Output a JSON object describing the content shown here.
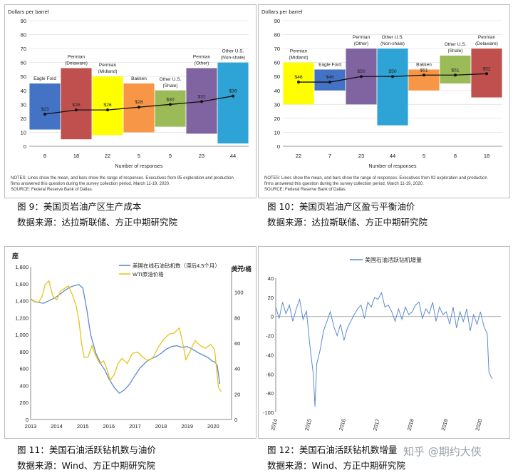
{
  "chart_data": [
    {
      "type": "bar",
      "ylabel": "Dollars per barrel",
      "xlabel": "Number of responses",
      "ylim": [
        0,
        90
      ],
      "yticks": [
        0,
        10,
        20,
        30,
        40,
        50,
        60,
        70,
        80,
        90
      ],
      "categories": [
        "Eagle Ford",
        "Permian (Delaware)",
        "Permian (Midland)",
        "Bakken",
        "Other U.S. (Shale)",
        "Permian (Other)",
        "Other U.S. (Non-shale)"
      ],
      "responses": [
        "8",
        "18",
        "22",
        "5",
        "9",
        "23",
        "44"
      ],
      "series": [
        {
          "name": "mean",
          "values": [
            23,
            26,
            26,
            28,
            30,
            32,
            36
          ]
        },
        {
          "name": "low",
          "values": [
            12,
            5,
            8,
            10,
            14,
            9,
            2
          ]
        },
        {
          "name": "high",
          "values": [
            45,
            56,
            50,
            45,
            40,
            56,
            60
          ]
        }
      ],
      "value_labels": [
        "$23",
        "$26",
        "$26",
        "$28",
        "$30",
        "$32",
        "$36"
      ],
      "colors": [
        "#4472c4",
        "#c0504d",
        "#ffff00",
        "#f79646",
        "#9bbb59",
        "#8064a2",
        "#2ea3d5"
      ],
      "notes": "NOTES: Lines show the mean, and bars show the range of responses. Executives from 95 exploration and production firms answered this question during the survey collection period, March 11-19, 2020.",
      "source": "SOURCE: Federal Reserve Bank of Dallas."
    },
    {
      "type": "bar",
      "ylabel": "Dollars per barrel",
      "xlabel": "Number of responses",
      "ylim": [
        0,
        90
      ],
      "yticks": [
        0,
        10,
        20,
        30,
        40,
        50,
        60,
        70,
        80,
        90
      ],
      "categories": [
        "Permian (Midland)",
        "Eagle Ford",
        "Permian (Other)",
        "Other U.S. (Non-shale)",
        "Bakken",
        "Other U.S. (Shale)",
        "Permian (Delaware)"
      ],
      "responses": [
        "22",
        "7",
        "23",
        "44",
        "5",
        "8",
        "18"
      ],
      "series": [
        {
          "name": "mean",
          "values": [
            46,
            46,
            50,
            50,
            51,
            51,
            52
          ]
        },
        {
          "name": "low",
          "values": [
            30,
            40,
            30,
            15,
            40,
            45,
            35
          ]
        },
        {
          "name": "high",
          "values": [
            60,
            55,
            70,
            70,
            55,
            65,
            70
          ]
        }
      ],
      "value_labels": [
        "$46",
        "$46",
        "$50",
        "$50",
        "$51",
        "$51",
        "$52"
      ],
      "colors": [
        "#ffff00",
        "#4472c4",
        "#8064a2",
        "#2ea3d5",
        "#f79646",
        "#9bbb59",
        "#c0504d"
      ],
      "notes": "NOTES: Lines show the mean, and bars show the range of responses. Executives from 92 exploration and production firms answered this question during the survey collection period, March 11-19, 2020.",
      "source": "SOURCE: Federal Reserve Bank of Dallas."
    },
    {
      "type": "line",
      "y_unit": "座",
      "y2_unit": "美元/桶",
      "ylim": [
        0,
        1800
      ],
      "yticks": [
        0,
        200,
        400,
        600,
        800,
        1000,
        1200,
        1400,
        1600,
        1800
      ],
      "y2lim": [
        0,
        120
      ],
      "y2ticks": [
        0,
        20,
        40,
        60,
        80,
        100,
        120
      ],
      "xlim": [
        2013,
        2020.7
      ],
      "xticks": [
        "2013",
        "2014",
        "2015",
        "2016",
        "2017",
        "2018",
        "2019",
        "2020"
      ],
      "series": [
        {
          "name": "美国在线石油钻机数（滞后4.5个月）",
          "color": "#5b8bd0",
          "axis": "left",
          "x": [
            2013.0,
            2013.15,
            2013.3,
            2013.5,
            2013.7,
            2013.9,
            2014.1,
            2014.3,
            2014.5,
            2014.7,
            2014.85,
            2015.0,
            2015.15,
            2015.3,
            2015.5,
            2015.7,
            2015.85,
            2016.0,
            2016.2,
            2016.4,
            2016.6,
            2016.8,
            2017.0,
            2017.2,
            2017.5,
            2017.8,
            2018.0,
            2018.2,
            2018.4,
            2018.6,
            2018.8,
            2019.0,
            2019.2,
            2019.4,
            2019.6,
            2019.8,
            2019.95,
            2020.05,
            2020.15,
            2020.25
          ],
          "values": [
            1420,
            1390,
            1380,
            1370,
            1400,
            1430,
            1470,
            1520,
            1560,
            1580,
            1590,
            1550,
            1300,
            1000,
            780,
            650,
            580,
            480,
            380,
            310,
            350,
            420,
            520,
            610,
            700,
            740,
            780,
            830,
            860,
            870,
            850,
            860,
            830,
            790,
            760,
            730,
            690,
            680,
            640,
            420
          ]
        },
        {
          "name": "WTI原油价格",
          "color": "#e6c41a",
          "axis": "right",
          "x": [
            2013.0,
            2013.15,
            2013.3,
            2013.45,
            2013.55,
            2013.7,
            2013.85,
            2014.0,
            2014.15,
            2014.3,
            2014.45,
            2014.6,
            2014.75,
            2014.85,
            2014.95,
            2015.05,
            2015.2,
            2015.35,
            2015.5,
            2015.65,
            2015.8,
            2015.95,
            2016.05,
            2016.2,
            2016.35,
            2016.5,
            2016.7,
            2016.9,
            2017.1,
            2017.3,
            2017.5,
            2017.7,
            2017.9,
            2018.1,
            2018.3,
            2018.5,
            2018.7,
            2018.8,
            2018.95,
            2019.1,
            2019.3,
            2019.5,
            2019.7,
            2019.9,
            2020.05,
            2020.2,
            2020.3
          ],
          "values": [
            95,
            93,
            92,
            97,
            106,
            109,
            97,
            94,
            101,
            103,
            105,
            98,
            89,
            78,
            60,
            49,
            49,
            58,
            50,
            44,
            46,
            38,
            31,
            35,
            44,
            48,
            44,
            52,
            53,
            49,
            46,
            49,
            57,
            63,
            67,
            68,
            72,
            63,
            47,
            53,
            62,
            58,
            56,
            59,
            55,
            25,
            22
          ]
        }
      ]
    },
    {
      "type": "line",
      "ylim": [
        -100,
        40
      ],
      "yticks": [
        -100,
        -80,
        -60,
        -40,
        -20,
        0,
        20,
        40
      ],
      "xlim": [
        2014,
        2020.6
      ],
      "xticks": [
        "2014",
        "2015",
        "2016",
        "2017",
        "2018",
        "2019",
        "2020"
      ],
      "series": [
        {
          "name": "美国石油活跃钻机增量",
          "color": "#5b8bd0",
          "x": [
            2014.0,
            2014.1,
            2014.2,
            2014.3,
            2014.4,
            2014.5,
            2014.6,
            2014.7,
            2014.8,
            2014.9,
            2015.0,
            2015.05,
            2015.1,
            2015.15,
            2015.2,
            2015.3,
            2015.4,
            2015.5,
            2015.6,
            2015.7,
            2015.8,
            2015.9,
            2016.0,
            2016.1,
            2016.2,
            2016.3,
            2016.4,
            2016.5,
            2016.6,
            2016.7,
            2016.8,
            2016.9,
            2017.0,
            2017.1,
            2017.2,
            2017.3,
            2017.4,
            2017.5,
            2017.6,
            2017.7,
            2017.8,
            2017.9,
            2018.0,
            2018.1,
            2018.2,
            2018.3,
            2018.4,
            2018.5,
            2018.6,
            2018.7,
            2018.8,
            2018.9,
            2019.0,
            2019.1,
            2019.2,
            2019.3,
            2019.4,
            2019.5,
            2019.6,
            2019.7,
            2019.8,
            2019.9,
            2020.0,
            2020.1,
            2020.2,
            2020.25,
            2020.3,
            2020.35
          ],
          "values": [
            10,
            -2,
            15,
            3,
            12,
            -5,
            8,
            18,
            -3,
            6,
            -30,
            -45,
            -60,
            -94,
            -50,
            -35,
            -15,
            -5,
            5,
            -10,
            -20,
            -8,
            -25,
            -12,
            -5,
            2,
            8,
            12,
            -2,
            15,
            10,
            20,
            18,
            25,
            10,
            12,
            5,
            -5,
            8,
            -3,
            10,
            2,
            5,
            12,
            15,
            -2,
            8,
            3,
            15,
            -5,
            10,
            2,
            5,
            -8,
            10,
            -12,
            5,
            -5,
            8,
            -15,
            2,
            -8,
            5,
            -10,
            -18,
            -58,
            -62,
            -65
          ]
        }
      ]
    }
  ],
  "captions": {
    "fig9": "图 9：美国页岩油产区生产成本",
    "fig10": "图 10：美国页岩油产区盈亏平衡油价",
    "fig11": "图 11：美国石油活跃钻机数与油价",
    "fig12": "图 12：美国石油活跃钻机数增量",
    "source_a": "数据来源：达拉斯联储、方正中期研究院",
    "source_b": "数据来源：Wind、方正中期研究院"
  },
  "watermark": "知乎 @期约大侠"
}
